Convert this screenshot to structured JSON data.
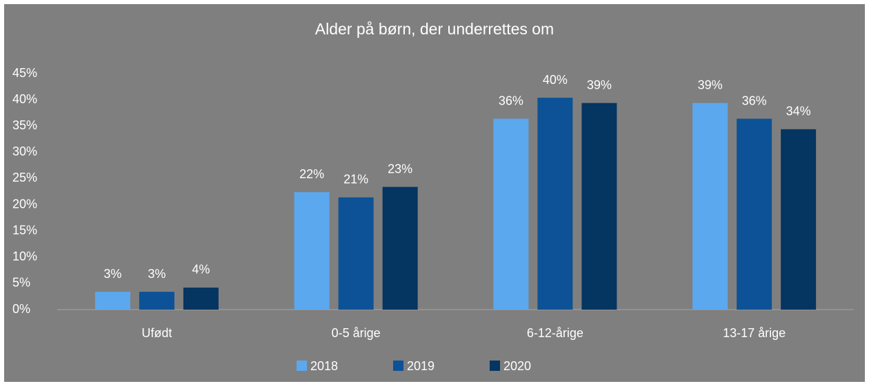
{
  "chart_data": {
    "type": "bar",
    "title": "Alder på børn, der underrettes om",
    "categories": [
      "Ufødt",
      "0-5 årige",
      "6-12-årige",
      "13-17 årige"
    ],
    "series": [
      {
        "name": "2018",
        "color": "#5ba8ef",
        "values": [
          3.4,
          22.4,
          36.4,
          39.4
        ],
        "value_labels": [
          "3%",
          "22%",
          "36%",
          "39%"
        ]
      },
      {
        "name": "2019",
        "color": "#0d5296",
        "values": [
          3.4,
          21.4,
          40.4,
          36.4
        ],
        "value_labels": [
          "3%",
          "21%",
          "40%",
          "36%"
        ]
      },
      {
        "name": "2020",
        "color": "#053561",
        "values": [
          4.2,
          23.4,
          39.4,
          34.4
        ],
        "value_labels": [
          "4%",
          "23%",
          "39%",
          "34%"
        ]
      }
    ],
    "ylim": [
      0,
      45
    ],
    "yticks": [
      {
        "value": 0,
        "label": "0%"
      },
      {
        "value": 5,
        "label": "5%"
      },
      {
        "value": 10,
        "label": "10%"
      },
      {
        "value": 15,
        "label": "15%"
      },
      {
        "value": 20,
        "label": "20%"
      },
      {
        "value": 25,
        "label": "25%"
      },
      {
        "value": 30,
        "label": "30%"
      },
      {
        "value": 35,
        "label": "35%"
      },
      {
        "value": 40,
        "label": "40%"
      },
      {
        "value": 45,
        "label": "45%"
      }
    ],
    "grid": false,
    "legend": "bottom"
  }
}
